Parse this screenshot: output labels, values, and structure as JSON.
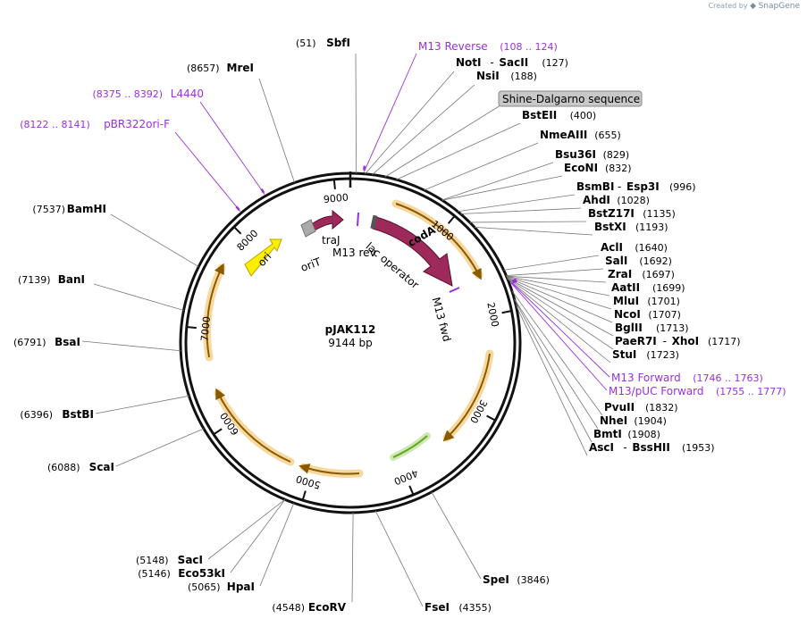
{
  "watermark": {
    "prefix": "Created by",
    "brand": "SnapGene"
  },
  "plasmid": {
    "name": "pJAK112",
    "length_label": "9144 bp",
    "length": 9144
  },
  "sites": [
    {
      "name": "SbfI",
      "pos": 51,
      "pos_label": "(51)"
    },
    {
      "name": "NotI",
      "name2": "SacII",
      "pos": 127,
      "pos_label": "(127)"
    },
    {
      "name": "NsiI",
      "pos": 188,
      "pos_label": "(188)"
    },
    {
      "name": "BstEII",
      "pos": 400,
      "pos_label": "(400)"
    },
    {
      "name": "NmeAIII",
      "pos": 655,
      "pos_label": "(655)"
    },
    {
      "name": "Bsu36I",
      "pos": 829,
      "pos_label": "(829)"
    },
    {
      "name": "EcoNI",
      "pos": 832,
      "pos_label": "(832)"
    },
    {
      "name": "BsmBI",
      "name2": "Esp3I",
      "pos": 996,
      "pos_label": "(996)"
    },
    {
      "name": "AhdI",
      "pos": 1028,
      "pos_label": "(1028)"
    },
    {
      "name": "BstZ17I",
      "pos": 1135,
      "pos_label": "(1135)"
    },
    {
      "name": "BstXI",
      "pos": 1193,
      "pos_label": "(1193)"
    },
    {
      "name": "AclI",
      "pos": 1640,
      "pos_label": "(1640)"
    },
    {
      "name": "SalI",
      "pos": 1692,
      "pos_label": "(1692)"
    },
    {
      "name": "ZraI",
      "pos": 1697,
      "pos_label": "(1697)"
    },
    {
      "name": "AatII",
      "pos": 1699,
      "pos_label": "(1699)"
    },
    {
      "name": "MluI",
      "pos": 1701,
      "pos_label": "(1701)"
    },
    {
      "name": "NcoI",
      "pos": 1707,
      "pos_label": "(1707)"
    },
    {
      "name": "BglII",
      "pos": 1713,
      "pos_label": "(1713)"
    },
    {
      "name": "PaeR7I",
      "name2": "XhoI",
      "pos": 1717,
      "pos_label": "(1717)"
    },
    {
      "name": "StuI",
      "pos": 1723,
      "pos_label": "(1723)"
    },
    {
      "name": "PvuII",
      "pos": 1832,
      "pos_label": "(1832)"
    },
    {
      "name": "NheI",
      "pos": 1904,
      "pos_label": "(1904)"
    },
    {
      "name": "BmtI",
      "pos": 1908,
      "pos_label": "(1908)"
    },
    {
      "name": "AscI",
      "name2": "BssHII",
      "pos": 1953,
      "pos_label": "(1953)"
    },
    {
      "name": "SpeI",
      "pos": 3846,
      "pos_label": "(3846)"
    },
    {
      "name": "FseI",
      "pos": 4355,
      "pos_label": "(4355)"
    },
    {
      "name": "EcoRV",
      "pos": 4548,
      "pos_label": "(4548)"
    },
    {
      "name": "HpaI",
      "pos": 5065,
      "pos_label": "(5065)"
    },
    {
      "name": "Eco53kI",
      "pos": 5146,
      "pos_label": "(5146)"
    },
    {
      "name": "SacI",
      "pos": 5148,
      "pos_label": "(5148)"
    },
    {
      "name": "ScaI",
      "pos": 6088,
      "pos_label": "(6088)"
    },
    {
      "name": "BstBI",
      "pos": 6396,
      "pos_label": "(6396)"
    },
    {
      "name": "BsaI",
      "pos": 6791,
      "pos_label": "(6791)"
    },
    {
      "name": "BanI",
      "pos": 7139,
      "pos_label": "(7139)"
    },
    {
      "name": "BamHI",
      "pos": 7537,
      "pos_label": "(7537)"
    },
    {
      "name": "MreI",
      "pos": 8657,
      "pos_label": "(8657)"
    }
  ],
  "primers": [
    {
      "name": "M13 Reverse",
      "range_label": "(108 .. 124)",
      "pos": 116
    },
    {
      "name": "M13 Forward",
      "range_label": "(1746 .. 1763)",
      "pos": 1754
    },
    {
      "name": "M13/pUC Forward",
      "range_label": "(1755 .. 1777)",
      "pos": 1766
    },
    {
      "name": "L4440",
      "range_label": "(8375 .. 8392)",
      "pos": 8383
    },
    {
      "name": "pBR322ori-F",
      "range_label": "(8122 .. 8141)",
      "pos": 8131
    }
  ],
  "feature_callout": {
    "label": "Shine-Dalgarno sequence",
    "pos": 300
  },
  "features": {
    "codA": "codA",
    "ori": "ori",
    "traJ": "traJ",
    "oriT": "oriT",
    "m13rev": "M13 rev",
    "lacop": "lac operator",
    "m13fwd": "M13 fwd"
  },
  "ticks": [
    {
      "pos": 1000,
      "label": "1000"
    },
    {
      "pos": 2000,
      "label": "2000"
    },
    {
      "pos": 3000,
      "label": "3000"
    },
    {
      "pos": 4000,
      "label": "4000"
    },
    {
      "pos": 5000,
      "label": "5000"
    },
    {
      "pos": 6000,
      "label": "6000"
    },
    {
      "pos": 7000,
      "label": "7000"
    },
    {
      "pos": 8000,
      "label": "8000"
    },
    {
      "pos": 9000,
      "label": "9000"
    }
  ],
  "colors": {
    "ring": "#111111",
    "codA": "#9e2a5c",
    "ori": "#ffee00",
    "orf": "#d68a00",
    "orf_halo": "#f7d9a0",
    "green": "#5ea81e",
    "primer": "#9b30d9",
    "grey": "#aaaaaa"
  }
}
